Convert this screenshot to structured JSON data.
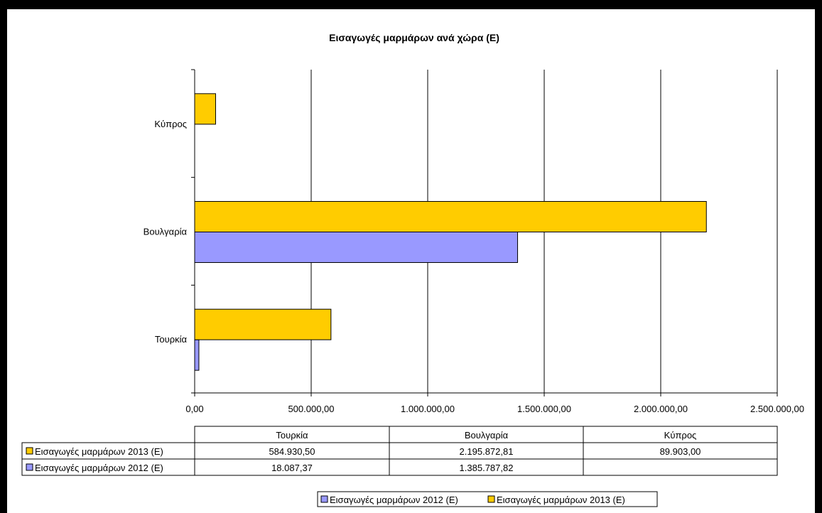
{
  "chart_data": {
    "type": "bar",
    "orientation": "horizontal",
    "title": "Εισαγωγές μαρμάρων ανά χώρα (Ε)",
    "categories": [
      "Τουρκία",
      "Βουλγαρία",
      "Κύπρος"
    ],
    "series": [
      {
        "name": "Εισαγωγές μαρμάρων 2012 (Ε)",
        "color": "#9999ff",
        "values": [
          18087.37,
          1385787.82,
          null
        ],
        "labels": [
          "18.087,37",
          "1.385.787,82",
          ""
        ]
      },
      {
        "name": "Εισαγωγές μαρμάρων 2013 (Ε)",
        "color": "#ffcc00",
        "values": [
          584930.5,
          2195872.81,
          89903.0
        ],
        "labels": [
          "584.930,50",
          "2.195.872,81",
          "89.903,00"
        ]
      }
    ],
    "xlim": [
      0,
      2500000
    ],
    "x_ticks": [
      0,
      500000,
      1000000,
      1500000,
      2000000,
      2500000
    ],
    "x_tick_labels": [
      "0,00",
      "500.000,00",
      "1.000.000,00",
      "1.500.000,00",
      "2.000.000,00",
      "2.500.000,00"
    ],
    "grid": true,
    "legend": {
      "position": "bottom",
      "items": [
        "Εισαγωγές μαρμάρων 2012 (Ε)",
        "Εισαγωγές μαρμάρων 2013 (Ε)"
      ]
    },
    "data_table": {
      "columns": [
        "Τουρκία",
        "Βουλγαρία",
        "Κύπρος"
      ],
      "row_order": [
        1,
        0
      ]
    }
  }
}
